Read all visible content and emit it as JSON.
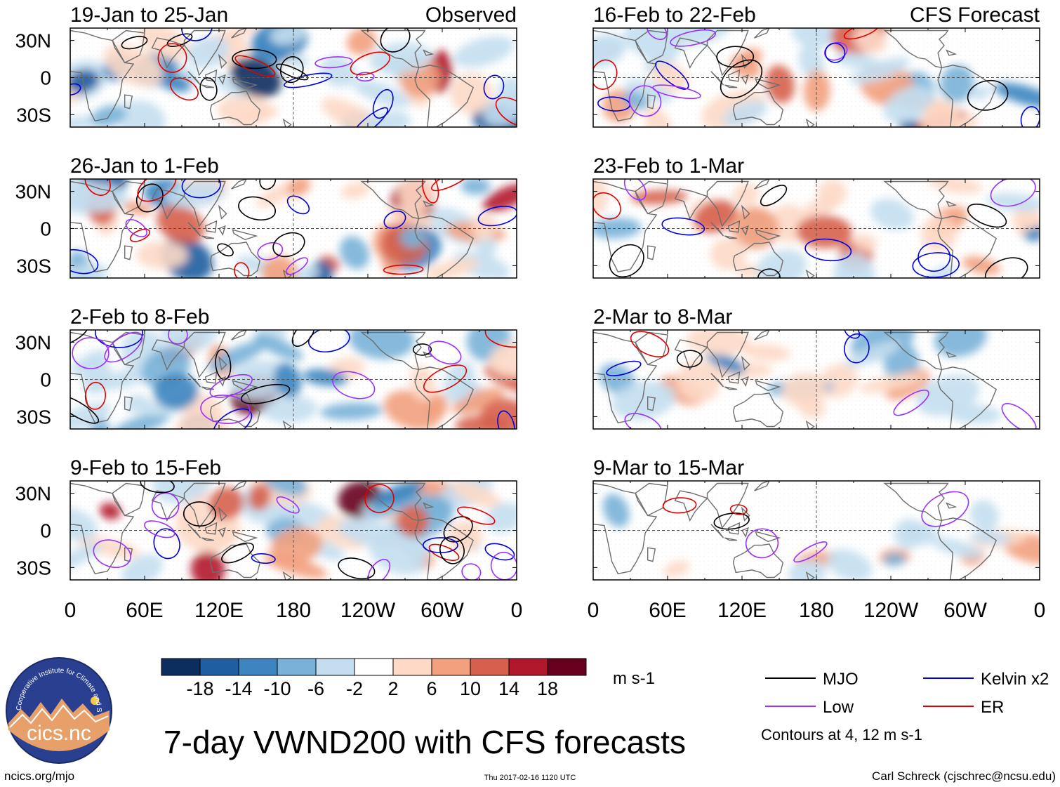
{
  "panels": [
    {
      "title": "19-Jan to 25-Jan",
      "tag": "Observed"
    },
    {
      "title": "16-Feb to 22-Feb",
      "tag": "CFS Forecast"
    },
    {
      "title": "26-Jan to 1-Feb"
    },
    {
      "title": "23-Feb to 1-Mar"
    },
    {
      "title": "2-Feb to 8-Feb"
    },
    {
      "title": "2-Mar to 8-Mar"
    },
    {
      "title": "9-Feb to 15-Feb"
    },
    {
      "title": "9-Mar to 15-Mar"
    }
  ],
  "lat_labels": [
    "30N",
    "0",
    "30S"
  ],
  "lon_labels": [
    "0",
    "60E",
    "120E",
    "180",
    "120W",
    "60W",
    "0"
  ],
  "colorbar": {
    "ticks": [
      "-18",
      "-14",
      "-10",
      "-6",
      "-2",
      "2",
      "6",
      "10",
      "14",
      "18"
    ],
    "colors": [
      "#0b2e5e",
      "#1f5ea0",
      "#3c85c0",
      "#79b1d8",
      "#c4def0",
      "#ffffff",
      "#fdd9c6",
      "#f2a07e",
      "#d6604d",
      "#b2182b",
      "#67001f"
    ],
    "units": "m s-1"
  },
  "legend": {
    "items": [
      {
        "label": "MJO",
        "color": "#000000"
      },
      {
        "label": "Kelvin x2",
        "color": "#0000dd"
      },
      {
        "label": "Low",
        "color": "#9b30ff"
      },
      {
        "label": "ER",
        "color": "#e00000"
      }
    ],
    "note": "Contours at 4, 12 m s-1"
  },
  "title": "7-day VWND200 with CFS forecasts",
  "logo_text": "cics.nc",
  "logo_arc_text": "Cooperative Institute for Climate and Satellites",
  "footer": {
    "left": "ncics.org/mjo",
    "center": "Thu 2017-02-16 1120 UTC",
    "right": "Carl Schreck (cjschrec@ncsu.edu)"
  }
}
